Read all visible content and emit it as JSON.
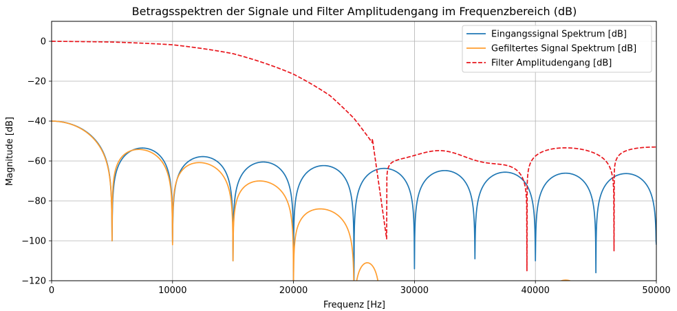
{
  "chart_data": {
    "type": "line",
    "title": "Betragsspektren der Signale und Filter Amplitudengang im Frequenzbereich (dB)",
    "xlabel": "Frequenz [Hz]",
    "ylabel": "Magnitude [dB]",
    "xlim": [
      0,
      50000
    ],
    "ylim": [
      -120,
      10
    ],
    "xticks": [
      0,
      10000,
      20000,
      30000,
      40000,
      50000
    ],
    "yticks": [
      0,
      -20,
      -40,
      -60,
      -80,
      -100,
      -120
    ],
    "xtick_labels": [
      "0",
      "10000",
      "20000",
      "30000",
      "40000",
      "50000"
    ],
    "ytick_labels": [
      "0",
      "−20",
      "−40",
      "−60",
      "−80",
      "−100",
      "−120"
    ],
    "grid": true,
    "legend_position": "top-right",
    "series": [
      {
        "name": "Eingangssignal Spektrum [dB]",
        "color": "#1f77b4",
        "style": "solid",
        "sinc_mainlobe_level_db": -40,
        "null_spacing_hz": 5000,
        "peaks": [
          [
            7200,
            -53.5
          ],
          [
            12300,
            -57.8
          ],
          [
            17400,
            -60.5
          ],
          [
            22500,
            -62.3
          ],
          [
            27600,
            -63.7
          ],
          [
            32400,
            -64.8
          ],
          [
            37500,
            -65.6
          ],
          [
            42500,
            -66.1
          ],
          [
            47500,
            -66.3
          ]
        ],
        "nulls": [
          [
            5000,
            -100
          ],
          [
            10000,
            -101
          ],
          [
            15000,
            -110
          ],
          [
            20000,
            -120
          ],
          [
            25000,
            -120
          ],
          [
            30000,
            -114
          ],
          [
            35000,
            -109
          ],
          [
            40000,
            -110
          ],
          [
            45000,
            -116
          ],
          [
            50000,
            -102
          ]
        ]
      },
      {
        "name": "Gefiltertes Signal Spektrum [dB]",
        "color": "#ff9d2e",
        "style": "solid",
        "peaks": [
          [
            7200,
            -54.2
          ],
          [
            12300,
            -60.8
          ],
          [
            16900,
            -70
          ],
          [
            21500,
            -84
          ],
          [
            26000,
            -111
          ],
          [
            42500,
            -120
          ]
        ],
        "nulls": [
          [
            5000,
            -100
          ],
          [
            10000,
            -102
          ],
          [
            15000,
            -110
          ],
          [
            20000,
            -120
          ],
          [
            25000,
            -120
          ]
        ]
      },
      {
        "name": "Filter Amplitudengang [dB]",
        "color": "#e8141b",
        "style": "dashed",
        "passband": [
          [
            0,
            0
          ],
          [
            5000,
            -0.5
          ],
          [
            10000,
            -2
          ],
          [
            15000,
            -6.5
          ],
          [
            20000,
            -15.5
          ],
          [
            23000,
            -24
          ],
          [
            25000,
            -35
          ],
          [
            26500,
            -48
          ],
          [
            27700,
            -99
          ]
        ],
        "stopband_peaks": [
          [
            28900,
            -57.2
          ],
          [
            32000,
            -60
          ],
          [
            35600,
            -55.6
          ],
          [
            42800,
            -53.4
          ],
          [
            50000,
            -53
          ]
        ],
        "nulls": [
          [
            27700,
            -99
          ],
          [
            39300,
            -115
          ],
          [
            46500,
            -105
          ]
        ]
      }
    ]
  }
}
